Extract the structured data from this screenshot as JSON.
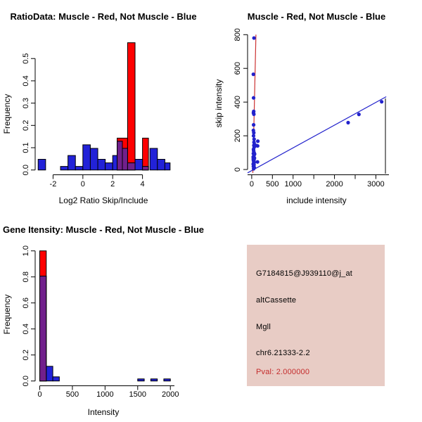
{
  "colors": {
    "red": "#FE0000",
    "blue": "#2222D8",
    "purple": "#71208C",
    "point_blue": "#2222CC",
    "blue_line": "#2222CC",
    "red_line": "#CC3333",
    "black": "#000000",
    "pval_red": "#C42B2B",
    "info_box_bg": "#E8CCC5"
  },
  "chart_data": [
    {
      "id": "ratio_histogram",
      "type": "bar",
      "title": "RatioData: Muscle - Red, Not Muscle - Blue",
      "xlabel": "Log2 Ratio Skip/Include",
      "ylabel": "Frequency",
      "xlim": [
        -3.2,
        6.0
      ],
      "ylim": [
        0,
        0.59
      ],
      "grid": false,
      "x_ticks": [
        {
          "v": -2,
          "label": "-2"
        },
        {
          "v": 0,
          "label": "0"
        },
        {
          "v": 2,
          "label": "2"
        },
        {
          "v": 4,
          "label": "4"
        }
      ],
      "y_ticks": [
        {
          "v": 0.0,
          "label": "0.0"
        },
        {
          "v": 0.1,
          "label": "0.1"
        },
        {
          "v": 0.2,
          "label": "0.2"
        },
        {
          "v": 0.3,
          "label": "0.3"
        },
        {
          "v": 0.4,
          "label": "0.4"
        },
        {
          "v": 0.5,
          "label": "0.5"
        }
      ],
      "series": [
        {
          "name": "Muscle",
          "color_key": "red",
          "bins": [
            {
              "start": 2.3,
              "w": 0.7,
              "freq": 0.143
            },
            {
              "start": 3.0,
              "w": 0.5,
              "freq": 0.571
            },
            {
              "start": 4.0,
              "w": 0.4,
              "freq": 0.143
            }
          ]
        },
        {
          "name": "Not Muscle",
          "color_key": "blue",
          "bins": [
            {
              "start": -3.0,
              "w": 0.5,
              "freq": 0.048
            },
            {
              "start": -1.5,
              "w": 0.5,
              "freq": 0.016
            },
            {
              "start": -1.0,
              "w": 0.5,
              "freq": 0.065
            },
            {
              "start": -0.5,
              "w": 0.5,
              "freq": 0.016
            },
            {
              "start": 0.0,
              "w": 0.5,
              "freq": 0.113
            },
            {
              "start": 0.5,
              "w": 0.5,
              "freq": 0.097
            },
            {
              "start": 1.0,
              "w": 0.5,
              "freq": 0.048
            },
            {
              "start": 1.5,
              "w": 0.5,
              "freq": 0.032
            },
            {
              "start": 2.0,
              "w": 0.3,
              "freq": 0.065
            },
            {
              "start": 2.3,
              "w": 0.35,
              "freq": 0.129
            },
            {
              "start": 2.65,
              "w": 0.35,
              "freq": 0.097
            },
            {
              "start": 3.0,
              "w": 0.5,
              "freq": 0.032
            },
            {
              "start": 3.5,
              "w": 0.5,
              "freq": 0.048
            },
            {
              "start": 4.0,
              "w": 0.4,
              "freq": 0.016
            },
            {
              "start": 4.5,
              "w": 0.5,
              "freq": 0.097
            },
            {
              "start": 5.0,
              "w": 0.5,
              "freq": 0.048
            },
            {
              "start": 5.5,
              "w": 0.35,
              "freq": 0.032
            }
          ]
        }
      ],
      "overlap_color_key": "purple"
    },
    {
      "id": "intensity_scatter",
      "type": "scatter",
      "title": "Muscle - Red, Not Muscle - Blue",
      "xlabel": "include intensity",
      "ylabel": "skip intensity",
      "xlim": [
        -100,
        3350
      ],
      "ylim": [
        -20,
        830
      ],
      "grid": false,
      "x_ticks": [
        {
          "v": 0,
          "label": "0"
        },
        {
          "v": 500,
          "label": "500"
        },
        {
          "v": 1000,
          "label": "1000"
        },
        {
          "v": 1500,
          "label": ""
        },
        {
          "v": 2000,
          "label": "2000"
        },
        {
          "v": 2500,
          "label": ""
        },
        {
          "v": 3000,
          "label": "3000"
        }
      ],
      "y_ticks": [
        {
          "v": 0,
          "label": "0"
        },
        {
          "v": 200,
          "label": "200"
        },
        {
          "v": 400,
          "label": "400"
        },
        {
          "v": 600,
          "label": "600"
        },
        {
          "v": 800,
          "label": "800"
        }
      ],
      "points": [
        [
          55,
          780
        ],
        [
          40,
          565
        ],
        [
          45,
          425
        ],
        [
          48,
          345
        ],
        [
          42,
          336
        ],
        [
          52,
          328
        ],
        [
          46,
          265
        ],
        [
          40,
          232
        ],
        [
          50,
          218
        ],
        [
          44,
          200
        ],
        [
          148,
          168
        ],
        [
          55,
          162
        ],
        [
          65,
          150
        ],
        [
          52,
          143
        ],
        [
          120,
          142
        ],
        [
          143,
          140
        ],
        [
          60,
          133
        ],
        [
          47,
          110
        ],
        [
          57,
          100
        ],
        [
          40,
          95
        ],
        [
          70,
          92
        ],
        [
          62,
          88
        ],
        [
          50,
          80
        ],
        [
          36,
          74
        ],
        [
          66,
          68
        ],
        [
          46,
          64
        ],
        [
          38,
          62
        ],
        [
          56,
          58
        ],
        [
          42,
          54
        ],
        [
          50,
          48
        ],
        [
          140,
          45
        ],
        [
          61,
          42
        ],
        [
          46,
          38
        ],
        [
          36,
          32
        ],
        [
          56,
          28
        ],
        [
          48,
          22
        ],
        [
          41,
          18
        ],
        [
          60,
          12
        ],
        [
          52,
          8
        ],
        [
          46,
          4
        ],
        [
          43,
          120
        ],
        [
          58,
          180
        ],
        [
          2330,
          278
        ],
        [
          2590,
          327
        ],
        [
          3140,
          402
        ]
      ],
      "lines": [
        {
          "color_key": "blue_line",
          "x1": -100,
          "y1": -20,
          "x2": 3250,
          "y2": 432
        },
        {
          "color_key": "red_line",
          "x1": 27,
          "y1": -20,
          "x2": 102,
          "y2": 800
        }
      ]
    },
    {
      "id": "gene_intensity_histogram",
      "type": "bar",
      "title": "Gene Itensity: Muscle - Red, Not Muscle - Blue",
      "xlabel": "Intensity",
      "ylabel": "Frequency",
      "xlim": [
        -70,
        2030
      ],
      "ylim": [
        0,
        1.02
      ],
      "grid": false,
      "x_ticks": [
        {
          "v": 0,
          "label": "0"
        },
        {
          "v": 500,
          "label": "500"
        },
        {
          "v": 1000,
          "label": "1000"
        },
        {
          "v": 1500,
          "label": "1500"
        },
        {
          "v": 2000,
          "label": "2000"
        }
      ],
      "y_ticks": [
        {
          "v": 0.0,
          "label": "0.0"
        },
        {
          "v": 0.2,
          "label": "0.2"
        },
        {
          "v": 0.4,
          "label": "0.4"
        },
        {
          "v": 0.6,
          "label": "0.6"
        },
        {
          "v": 0.8,
          "label": "0.8"
        },
        {
          "v": 1.0,
          "label": "1.0"
        }
      ],
      "series": [
        {
          "name": "Muscle",
          "color_key": "red",
          "bins": [
            {
              "start": 0,
              "w": 100,
              "freq": 1.0
            }
          ]
        },
        {
          "name": "Not Muscle",
          "color_key": "blue",
          "bins": [
            {
              "start": 0,
              "w": 100,
              "freq": 0.806
            },
            {
              "start": 100,
              "w": 100,
              "freq": 0.113
            },
            {
              "start": 200,
              "w": 100,
              "freq": 0.032
            },
            {
              "start": 1500,
              "w": 100,
              "freq": 0.016
            },
            {
              "start": 1700,
              "w": 100,
              "freq": 0.016
            },
            {
              "start": 1900,
              "w": 100,
              "freq": 0.016
            }
          ]
        }
      ],
      "overlap_color_key": "purple"
    }
  ],
  "info_box": {
    "lines": [
      {
        "text": "G7184815@J939110@j_at",
        "color_key": "black"
      },
      {
        "text": "altCassette",
        "color_key": "black"
      },
      {
        "text": "Mgll",
        "color_key": "black"
      },
      {
        "text": "chr6.21333-2.2",
        "color_key": "black"
      },
      {
        "text": "Pval: 2.000000",
        "color_key": "pval_red"
      }
    ]
  }
}
